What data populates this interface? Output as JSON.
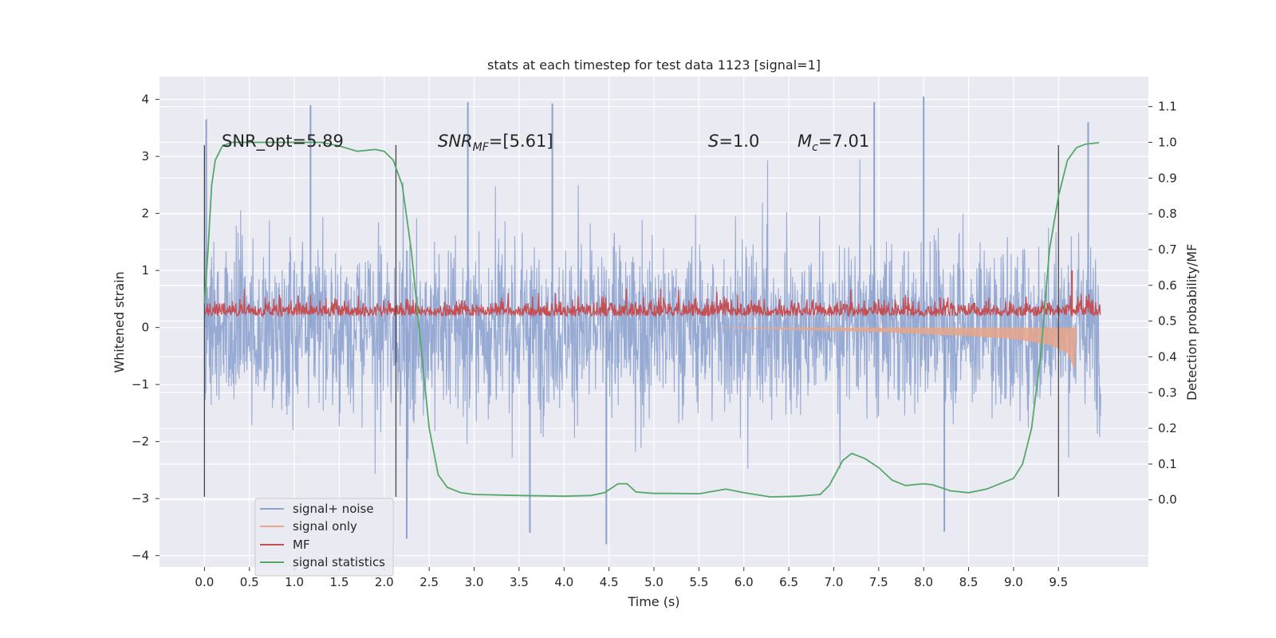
{
  "chart_data": {
    "type": "line",
    "title": "stats at each timestep for test data 1123 [signal=1]",
    "xlabel": "Time (s)",
    "ylabel": "Whitened strain",
    "ylabel_right": "Detection probability/MF",
    "xlim": [
      -0.5,
      10.5
    ],
    "ylim": [
      -4.2,
      4.4
    ],
    "ylim_right": [
      -0.188,
      1.184
    ],
    "x_ticks": [
      "0.0",
      "0.5",
      "1.0",
      "1.5",
      "2.0",
      "2.5",
      "3.0",
      "3.5",
      "4.0",
      "4.5",
      "5.0",
      "5.5",
      "6.0",
      "6.5",
      "7.0",
      "7.5",
      "8.0",
      "8.5",
      "9.0",
      "9.5"
    ],
    "y_ticks": [
      "4",
      "3",
      "2",
      "1",
      "0",
      "−1",
      "−2",
      "−3",
      "−4"
    ],
    "y_ticks_right": [
      "1.1",
      "1.0",
      "0.9",
      "0.8",
      "0.7",
      "0.6",
      "0.5",
      "0.4",
      "0.3",
      "0.2",
      "0.1",
      "0.0"
    ],
    "grid": true,
    "legend_position": "lower-left",
    "annotations": {
      "snr_opt": "SNR_opt=5.89",
      "snr_mf_base": "SNR",
      "snr_mf_sub": "MF",
      "snr_mf_rest": "=[5.61]",
      "s_label": "S",
      "s_rest": "=1.0",
      "mc_base": "M",
      "mc_sub": "c",
      "mc_rest": "=7.01"
    },
    "vertical_markers_x": [
      0.0,
      2.13,
      9.5
    ],
    "series": [
      {
        "name": "signal+ noise",
        "color": "#8da3cf",
        "axis": "left",
        "description": "dense noisy strain",
        "x_range": [
          0.0,
          9.97
        ],
        "typical_range": [
          -2.2,
          2.3
        ],
        "peaks": [
          {
            "x": 0.02,
            "y": 3.65
          },
          {
            "x": 1.18,
            "y": 3.9
          },
          {
            "x": 2.93,
            "y": 3.95
          },
          {
            "x": 3.87,
            "y": 3.93
          },
          {
            "x": 7.45,
            "y": 3.95
          },
          {
            "x": 8.0,
            "y": 4.05
          },
          {
            "x": 9.83,
            "y": 3.6
          },
          {
            "x": 4.47,
            "y": -3.8
          },
          {
            "x": 2.25,
            "y": -3.7
          },
          {
            "x": 8.23,
            "y": -3.58
          },
          {
            "x": 3.62,
            "y": -3.6
          }
        ]
      },
      {
        "name": "signal only",
        "color": "#e9a68a",
        "axis": "left",
        "description": "chirp envelope",
        "points": [
          [
            5.5,
            0.0
          ],
          [
            6.5,
            -0.04
          ],
          [
            7.5,
            -0.08
          ],
          [
            8.5,
            -0.15
          ],
          [
            9.0,
            -0.2
          ],
          [
            9.4,
            -0.3
          ],
          [
            9.6,
            -0.45
          ],
          [
            9.68,
            -0.75
          ],
          [
            9.7,
            -0.1
          ]
        ]
      },
      {
        "name": "MF",
        "color": "#c44e52",
        "axis": "left",
        "typical_range": [
          0.05,
          0.5
        ],
        "peaks": [
          {
            "x": 9.65,
            "y": 1.0
          }
        ]
      },
      {
        "name": "signal statistics",
        "color": "#55a868",
        "axis": "right",
        "points": [
          [
            0.0,
            0.55
          ],
          [
            0.04,
            0.7
          ],
          [
            0.08,
            0.88
          ],
          [
            0.12,
            0.95
          ],
          [
            0.2,
            0.99
          ],
          [
            0.3,
            1.0
          ],
          [
            1.0,
            1.0
          ],
          [
            1.3,
            1.0
          ],
          [
            1.5,
            0.99
          ],
          [
            1.7,
            0.975
          ],
          [
            1.9,
            0.98
          ],
          [
            2.0,
            0.975
          ],
          [
            2.1,
            0.95
          ],
          [
            2.2,
            0.88
          ],
          [
            2.3,
            0.7
          ],
          [
            2.4,
            0.45
          ],
          [
            2.5,
            0.2
          ],
          [
            2.6,
            0.07
          ],
          [
            2.7,
            0.035
          ],
          [
            2.85,
            0.02
          ],
          [
            3.0,
            0.015
          ],
          [
            3.5,
            0.012
          ],
          [
            4.0,
            0.01
          ],
          [
            4.3,
            0.012
          ],
          [
            4.45,
            0.02
          ],
          [
            4.6,
            0.045
          ],
          [
            4.7,
            0.045
          ],
          [
            4.8,
            0.022
          ],
          [
            5.0,
            0.018
          ],
          [
            5.2,
            0.018
          ],
          [
            5.5,
            0.017
          ],
          [
            5.8,
            0.03
          ],
          [
            6.0,
            0.02
          ],
          [
            6.3,
            0.008
          ],
          [
            6.6,
            0.01
          ],
          [
            6.85,
            0.015
          ],
          [
            6.95,
            0.04
          ],
          [
            7.1,
            0.11
          ],
          [
            7.2,
            0.13
          ],
          [
            7.35,
            0.115
          ],
          [
            7.5,
            0.09
          ],
          [
            7.65,
            0.055
          ],
          [
            7.8,
            0.04
          ],
          [
            8.0,
            0.045
          ],
          [
            8.1,
            0.042
          ],
          [
            8.3,
            0.025
          ],
          [
            8.5,
            0.02
          ],
          [
            8.7,
            0.03
          ],
          [
            8.9,
            0.05
          ],
          [
            9.0,
            0.06
          ],
          [
            9.1,
            0.1
          ],
          [
            9.2,
            0.2
          ],
          [
            9.3,
            0.4
          ],
          [
            9.4,
            0.7
          ],
          [
            9.5,
            0.85
          ],
          [
            9.6,
            0.95
          ],
          [
            9.7,
            0.985
          ],
          [
            9.8,
            0.995
          ],
          [
            9.95,
            0.999
          ]
        ]
      }
    ]
  }
}
